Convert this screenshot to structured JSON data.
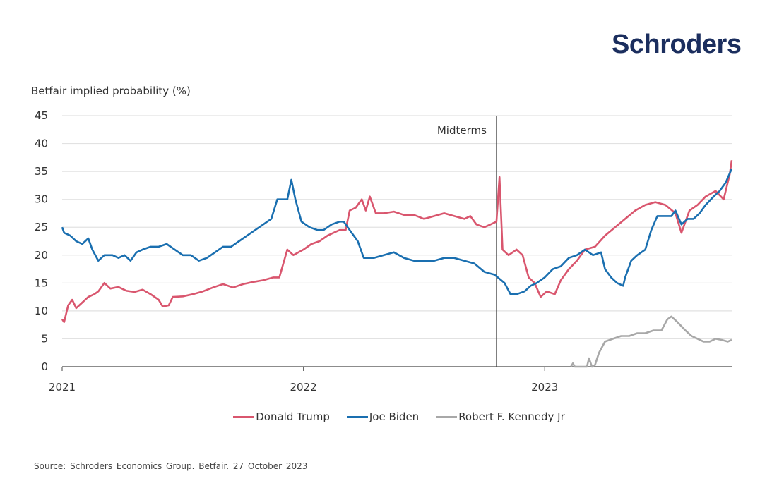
{
  "brand": {
    "logo_text": "Schroders",
    "logo_color": "#1b2e5e"
  },
  "source_note": "Source: Schroders Economics Group. Betfair. 27 October 2023",
  "chart_data": {
    "type": "line",
    "title": "",
    "ylabel": "Betfair implied probability (%)",
    "xlabel": "",
    "ylim": [
      0,
      45
    ],
    "yticks": [
      0,
      5,
      10,
      15,
      20,
      25,
      30,
      35,
      40,
      45
    ],
    "x_unit": "months since Jan 2021",
    "xlim": [
      0,
      33.3
    ],
    "xticks": [
      {
        "x": 0,
        "label": "2021"
      },
      {
        "x": 12,
        "label": "2022"
      },
      {
        "x": 24,
        "label": "2023"
      }
    ],
    "grid": true,
    "legend_position": "bottom-center",
    "annotations": [
      {
        "type": "vline",
        "x": 21.6,
        "label": "Midterms"
      }
    ],
    "series": [
      {
        "name": "Donald Trump",
        "color": "#d9566e",
        "points": [
          [
            0,
            8.5
          ],
          [
            0.1,
            8
          ],
          [
            0.3,
            11
          ],
          [
            0.5,
            12
          ],
          [
            0.7,
            10.5
          ],
          [
            1.0,
            11.5
          ],
          [
            1.3,
            12.5
          ],
          [
            1.6,
            13
          ],
          [
            1.8,
            13.5
          ],
          [
            2.1,
            15
          ],
          [
            2.4,
            14
          ],
          [
            2.8,
            14.3
          ],
          [
            3.2,
            13.6
          ],
          [
            3.6,
            13.4
          ],
          [
            4.0,
            13.8
          ],
          [
            4.4,
            13
          ],
          [
            4.8,
            12
          ],
          [
            5.0,
            10.8
          ],
          [
            5.3,
            11
          ],
          [
            5.5,
            12.5
          ],
          [
            6.0,
            12.6
          ],
          [
            6.5,
            13
          ],
          [
            7.0,
            13.5
          ],
          [
            7.5,
            14.2
          ],
          [
            8.0,
            14.8
          ],
          [
            8.5,
            14.2
          ],
          [
            9.0,
            14.8
          ],
          [
            9.5,
            15.2
          ],
          [
            10.0,
            15.5
          ],
          [
            10.5,
            16
          ],
          [
            10.8,
            16
          ],
          [
            11.2,
            21
          ],
          [
            11.5,
            20
          ],
          [
            12.0,
            21
          ],
          [
            12.4,
            22
          ],
          [
            12.8,
            22.5
          ],
          [
            13.2,
            23.5
          ],
          [
            13.5,
            24
          ],
          [
            13.8,
            24.5
          ],
          [
            14.1,
            24.5
          ],
          [
            14.3,
            28
          ],
          [
            14.6,
            28.5
          ],
          [
            14.9,
            30
          ],
          [
            15.1,
            28
          ],
          [
            15.3,
            30.5
          ],
          [
            15.6,
            27.5
          ],
          [
            16.0,
            27.5
          ],
          [
            16.5,
            27.8
          ],
          [
            17.0,
            27.2
          ],
          [
            17.5,
            27.2
          ],
          [
            18.0,
            26.5
          ],
          [
            18.5,
            27
          ],
          [
            19.0,
            27.5
          ],
          [
            19.5,
            27
          ],
          [
            20.0,
            26.5
          ],
          [
            20.3,
            27
          ],
          [
            20.6,
            25.5
          ],
          [
            21.0,
            25
          ],
          [
            21.3,
            25.5
          ],
          [
            21.6,
            26
          ],
          [
            21.75,
            34
          ],
          [
            21.9,
            21
          ],
          [
            22.2,
            20
          ],
          [
            22.6,
            21
          ],
          [
            22.9,
            20
          ],
          [
            23.2,
            16
          ],
          [
            23.5,
            15
          ],
          [
            23.8,
            12.5
          ],
          [
            24.1,
            13.5
          ],
          [
            24.5,
            13
          ],
          [
            24.8,
            15.5
          ],
          [
            25.2,
            17.5
          ],
          [
            25.6,
            19
          ],
          [
            26.0,
            21
          ],
          [
            26.5,
            21.5
          ],
          [
            27.0,
            23.5
          ],
          [
            27.5,
            25
          ],
          [
            28.0,
            26.5
          ],
          [
            28.5,
            28
          ],
          [
            29.0,
            29
          ],
          [
            29.5,
            29.5
          ],
          [
            30.0,
            29
          ],
          [
            30.5,
            27.5
          ],
          [
            30.8,
            24
          ],
          [
            31.2,
            28
          ],
          [
            31.6,
            29
          ],
          [
            32.0,
            30.5
          ],
          [
            32.5,
            31.5
          ],
          [
            32.9,
            30
          ],
          [
            33.1,
            33
          ],
          [
            33.2,
            34.5
          ],
          [
            33.3,
            37
          ]
        ]
      },
      {
        "name": "Joe Biden",
        "color": "#1a6fb0",
        "points": [
          [
            0,
            25
          ],
          [
            0.1,
            24
          ],
          [
            0.4,
            23.5
          ],
          [
            0.7,
            22.5
          ],
          [
            1.0,
            22
          ],
          [
            1.3,
            23
          ],
          [
            1.5,
            21
          ],
          [
            1.8,
            19
          ],
          [
            2.1,
            20
          ],
          [
            2.5,
            20
          ],
          [
            2.8,
            19.5
          ],
          [
            3.1,
            20
          ],
          [
            3.4,
            19
          ],
          [
            3.7,
            20.5
          ],
          [
            4.0,
            21
          ],
          [
            4.4,
            21.5
          ],
          [
            4.8,
            21.5
          ],
          [
            5.2,
            22
          ],
          [
            5.6,
            21
          ],
          [
            6.0,
            20
          ],
          [
            6.4,
            20
          ],
          [
            6.8,
            19
          ],
          [
            7.2,
            19.5
          ],
          [
            7.6,
            20.5
          ],
          [
            8.0,
            21.5
          ],
          [
            8.4,
            21.5
          ],
          [
            8.8,
            22.5
          ],
          [
            9.2,
            23.5
          ],
          [
            9.6,
            24.5
          ],
          [
            10.0,
            25.5
          ],
          [
            10.4,
            26.5
          ],
          [
            10.7,
            30
          ],
          [
            11.0,
            30
          ],
          [
            11.2,
            30
          ],
          [
            11.4,
            33.5
          ],
          [
            11.6,
            30
          ],
          [
            11.9,
            26
          ],
          [
            12.3,
            25
          ],
          [
            12.7,
            24.5
          ],
          [
            13.0,
            24.5
          ],
          [
            13.4,
            25.5
          ],
          [
            13.8,
            26
          ],
          [
            14.0,
            26
          ],
          [
            14.3,
            24.5
          ],
          [
            14.7,
            22.5
          ],
          [
            15.0,
            19.5
          ],
          [
            15.5,
            19.5
          ],
          [
            16.0,
            20
          ],
          [
            16.5,
            20.5
          ],
          [
            17.0,
            19.5
          ],
          [
            17.5,
            19
          ],
          [
            18.0,
            19
          ],
          [
            18.5,
            19
          ],
          [
            19.0,
            19.5
          ],
          [
            19.5,
            19.5
          ],
          [
            20.0,
            19
          ],
          [
            20.5,
            18.5
          ],
          [
            21.0,
            17
          ],
          [
            21.5,
            16.5
          ],
          [
            22.0,
            15
          ],
          [
            22.3,
            13
          ],
          [
            22.6,
            13
          ],
          [
            23.0,
            13.5
          ],
          [
            23.3,
            14.5
          ],
          [
            23.6,
            15
          ],
          [
            24.0,
            16
          ],
          [
            24.4,
            17.5
          ],
          [
            24.8,
            18
          ],
          [
            25.2,
            19.5
          ],
          [
            25.6,
            20
          ],
          [
            26.0,
            21
          ],
          [
            26.4,
            20
          ],
          [
            26.8,
            20.5
          ],
          [
            27.0,
            17.5
          ],
          [
            27.3,
            16
          ],
          [
            27.6,
            15
          ],
          [
            27.9,
            14.5
          ],
          [
            28.0,
            16
          ],
          [
            28.3,
            19
          ],
          [
            28.6,
            20
          ],
          [
            29.0,
            21
          ],
          [
            29.3,
            24.5
          ],
          [
            29.6,
            27
          ],
          [
            30.0,
            27
          ],
          [
            30.3,
            27
          ],
          [
            30.5,
            28
          ],
          [
            30.8,
            25.5
          ],
          [
            31.1,
            26.5
          ],
          [
            31.4,
            26.5
          ],
          [
            31.7,
            27.5
          ],
          [
            32.0,
            29
          ],
          [
            32.4,
            30.5
          ],
          [
            32.7,
            31.5
          ],
          [
            33.0,
            33
          ],
          [
            33.3,
            35.5
          ]
        ]
      },
      {
        "name": "Robert F. Kennedy Jr",
        "color": "#a8a8a8",
        "points": []
      }
    ]
  },
  "legend": [
    {
      "label": "Donald Trump",
      "color": "#d9566e"
    },
    {
      "label": "Joe Biden",
      "color": "#1a6fb0"
    },
    {
      "label": "Robert F. Kennedy Jr",
      "color": "#a8a8a8"
    }
  ]
}
